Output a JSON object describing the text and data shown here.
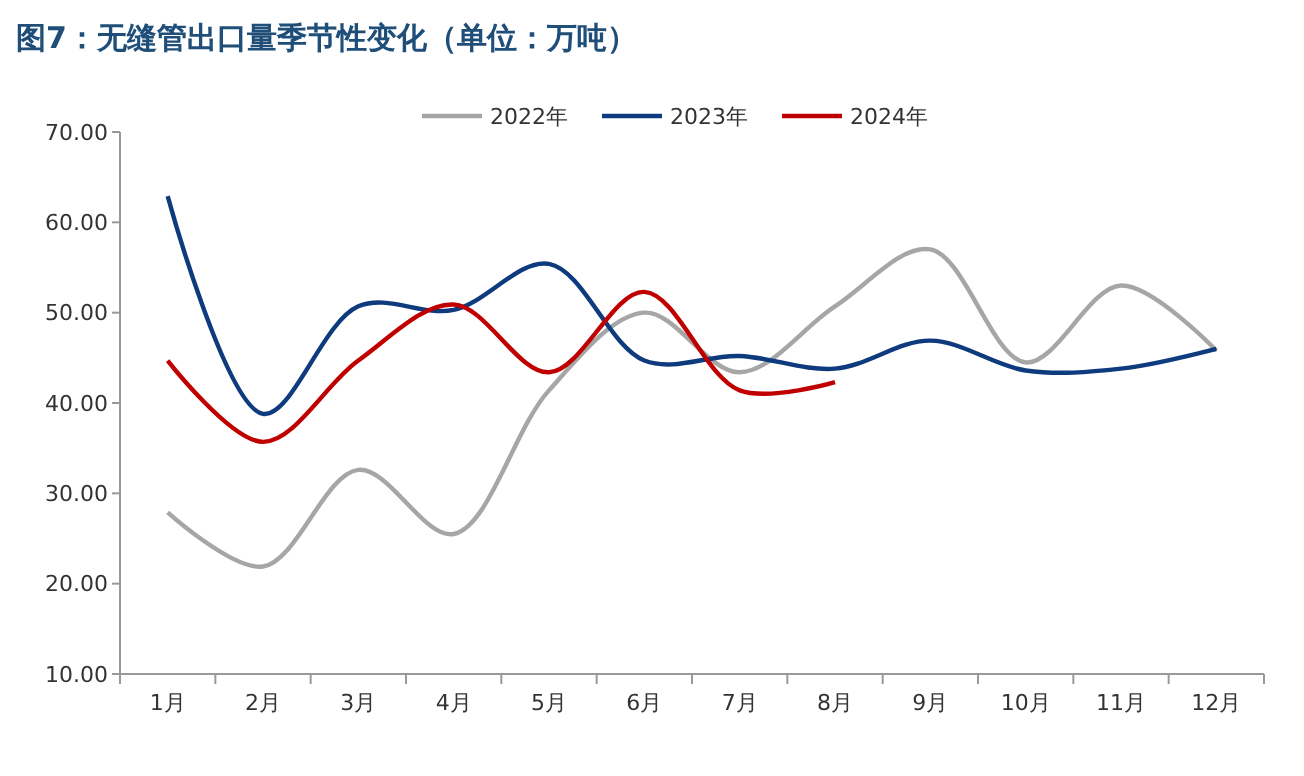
{
  "chart_data": {
    "type": "line",
    "title": "图7：无缝管出口量季节性变化（单位：万吨）",
    "categories": [
      "1月",
      "2月",
      "3月",
      "4月",
      "5月",
      "6月",
      "7月",
      "8月",
      "9月",
      "10月",
      "11月",
      "12月"
    ],
    "series": [
      {
        "name": "2022年",
        "color": "#a6a6a6",
        "values": [
          27.9,
          21.9,
          32.6,
          25.5,
          41.4,
          50.0,
          43.4,
          50.7,
          57.0,
          44.5,
          53.0,
          45.8
        ]
      },
      {
        "name": "2023年",
        "color": "#0e3a7e",
        "values": [
          62.9,
          38.8,
          50.7,
          50.3,
          55.4,
          44.7,
          45.2,
          43.8,
          46.9,
          43.6,
          43.8,
          46.0
        ]
      },
      {
        "name": "2024年",
        "color": "#c00000",
        "values": [
          44.7,
          35.7,
          44.7,
          50.9,
          43.4,
          52.3,
          41.4,
          42.3,
          null,
          null,
          null,
          null
        ]
      }
    ],
    "ylim": [
      10,
      70
    ],
    "yticks": [
      {
        "value": 10,
        "label": "10.00"
      },
      {
        "value": 20,
        "label": "20.00"
      },
      {
        "value": 30,
        "label": "30.00"
      },
      {
        "value": 40,
        "label": "40.00"
      },
      {
        "value": 50,
        "label": "50.00"
      },
      {
        "value": 60,
        "label": "60.00"
      },
      {
        "value": 70,
        "label": "70.00"
      }
    ],
    "legend": "top",
    "grid": false,
    "marker": "none",
    "line_style": "solid"
  }
}
